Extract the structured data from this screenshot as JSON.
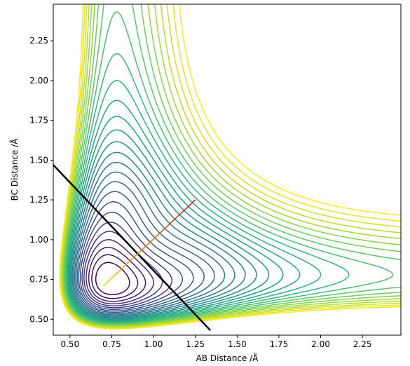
{
  "chart_data": {
    "type": "contour",
    "xlabel": "AB Distance /Å",
    "ylabel": "BC Distance /Å",
    "xlim": [
      0.4,
      2.48
    ],
    "ylim": [
      0.4,
      2.48
    ],
    "x_ticks": [
      0.5,
      0.75,
      1.0,
      1.25,
      1.5,
      1.75,
      2.0,
      2.25
    ],
    "y_ticks": [
      0.5,
      0.75,
      1.0,
      1.25,
      1.5,
      1.75,
      2.0,
      2.25
    ],
    "x_tick_labels": [
      "0.50",
      "0.75",
      "1.00",
      "1.25",
      "1.50",
      "1.75",
      "2.00",
      "2.25"
    ],
    "y_tick_labels": [
      "0.50",
      "0.75",
      "1.00",
      "1.25",
      "1.50",
      "1.75",
      "2.00",
      "2.25"
    ],
    "colormap": "viridis",
    "contour_levels": 28,
    "saddle_point": [
      0.92,
      0.92
    ],
    "lines": [
      {
        "role": "reaction-coordinate",
        "color": "#000000",
        "x": [
          0.4,
          1.34
        ],
        "y": [
          1.47,
          0.43
        ]
      },
      {
        "role": "normal-mode",
        "color_start": "#ffd700",
        "color_end": "#b22222",
        "x": [
          0.7,
          1.25
        ],
        "y": [
          0.71,
          1.25
        ]
      }
    ],
    "grid": false,
    "legend": "none"
  }
}
